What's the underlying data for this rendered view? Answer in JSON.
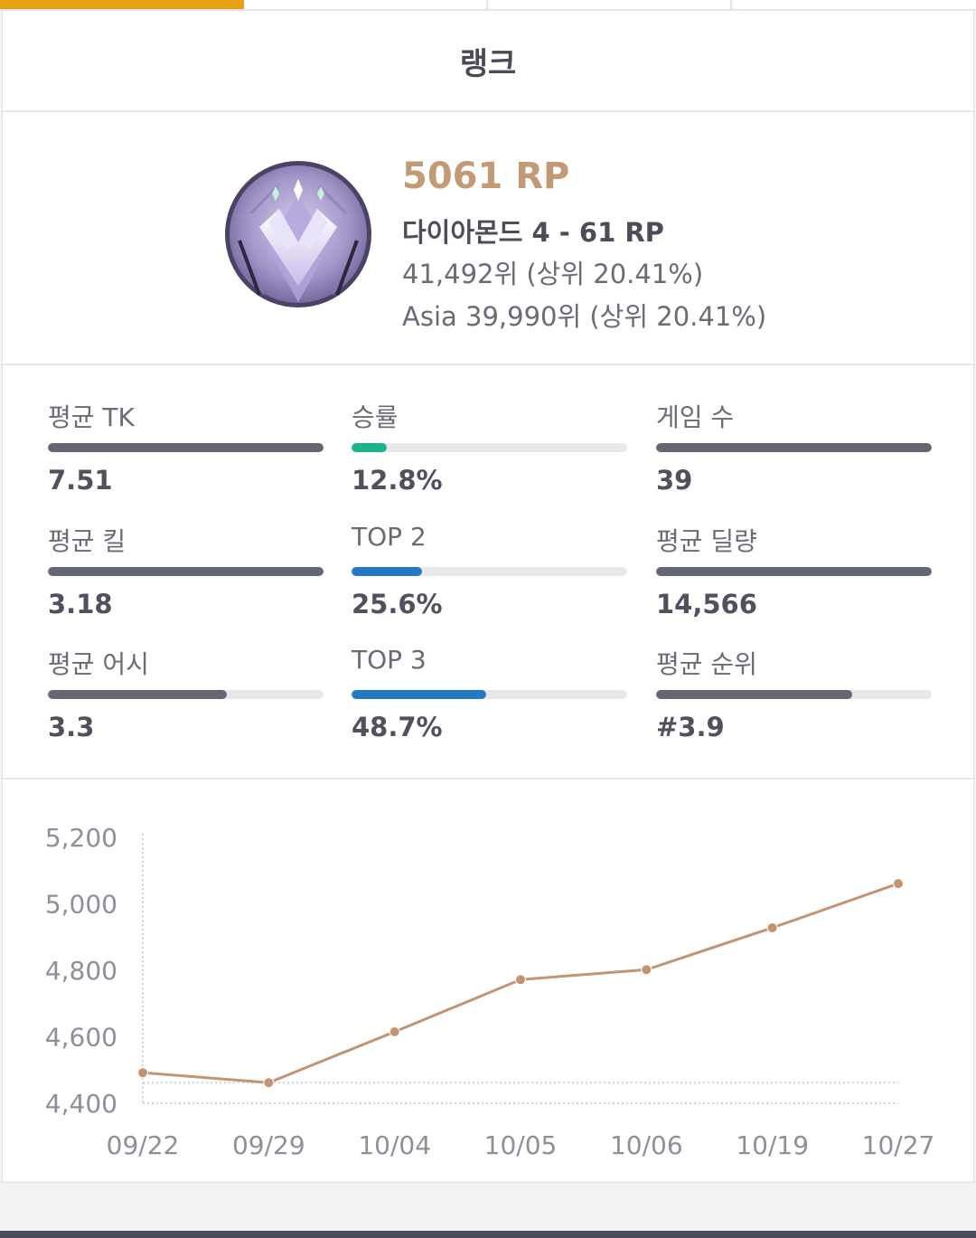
{
  "header": {
    "title": "랭크"
  },
  "rank": {
    "rp": "5061 RP",
    "tier": "다이아몬드 4 - 61 RP",
    "global_rank": "41,492위 (상위 20.41%)",
    "region_rank": "Asia 39,990위 (상위 20.41%)",
    "emblem_icon": "diamond-tier-emblem-icon"
  },
  "stats": [
    {
      "label": "평균 TK",
      "value": "7.51",
      "fill_percent": 100,
      "color": "#646674"
    },
    {
      "label": "승률",
      "value": "12.8%",
      "fill_percent": 12.8,
      "color": "#1bb38a"
    },
    {
      "label": "게임 수",
      "value": "39",
      "fill_percent": 100,
      "color": "#646674"
    },
    {
      "label": "평균 킬",
      "value": "3.18",
      "fill_percent": 100,
      "color": "#646674"
    },
    {
      "label": "TOP 2",
      "value": "25.6%",
      "fill_percent": 25.6,
      "color": "#2478c5"
    },
    {
      "label": "평균 딜량",
      "value": "14,566",
      "fill_percent": 100,
      "color": "#646674"
    },
    {
      "label": "평균 어시",
      "value": "3.3",
      "fill_percent": 65,
      "color": "#646674"
    },
    {
      "label": "TOP 3",
      "value": "48.7%",
      "fill_percent": 48.7,
      "color": "#2478c5"
    },
    {
      "label": "평균 순위",
      "value": "#3.9",
      "fill_percent": 71,
      "color": "#646674"
    }
  ],
  "chart_data": {
    "type": "line",
    "categories": [
      "09/22",
      "09/29",
      "10/04",
      "10/05",
      "10/06",
      "10/19",
      "10/27"
    ],
    "series": [
      {
        "values": [
          4492,
          4462,
          4615,
          4772,
          4802,
          4928,
          5061
        ],
        "color": "#c29474"
      }
    ],
    "yticks": [
      "5,200",
      "5,000",
      "4,800",
      "4,600",
      "4,400"
    ],
    "ytick_values": [
      5200,
      5000,
      4800,
      4600,
      4400
    ],
    "ylim": [
      4400,
      5200
    ],
    "xlabel": "",
    "ylabel": "",
    "title": ""
  }
}
